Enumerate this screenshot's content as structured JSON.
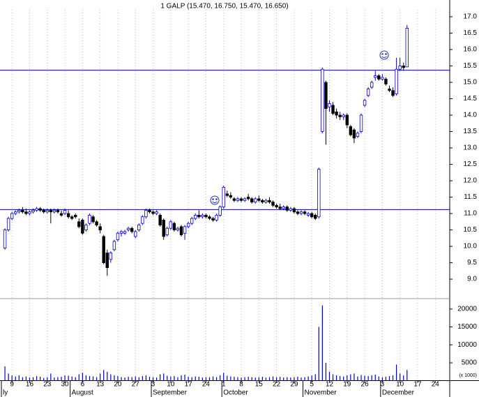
{
  "chart_data": {
    "type": "candlestick",
    "title": "1 GALP (15.470, 16.750, 15.470, 16.650)",
    "up_color": "#0000cc",
    "down_color": "#000000",
    "volume_color": "#0000cc",
    "line_color": "#0000aa",
    "open": [
      9.95,
      10.5,
      10.85,
      11.0,
      11.05,
      11.1,
      11.05,
      11.0,
      11.05,
      11.1,
      11.15,
      11.1,
      11.05,
      11.1,
      11.05,
      11.1,
      11.0,
      11.0,
      11.0,
      10.9,
      10.95,
      10.75,
      10.8,
      10.5,
      10.7,
      10.9,
      10.75,
      10.6,
      10.3,
      9.8,
      9.6,
      9.9,
      10.2,
      10.4,
      10.4,
      10.5,
      10.55,
      10.3,
      10.5,
      10.7,
      10.9,
      11.1,
      11.05,
      11.0,
      10.95,
      10.8,
      10.35,
      10.55,
      10.7,
      10.5,
      10.6,
      10.4,
      10.6,
      10.7,
      10.85,
      10.95,
      10.9,
      10.95,
      10.9,
      10.85,
      10.8,
      10.95,
      11.2,
      11.6,
      11.55,
      11.45,
      11.4,
      11.45,
      11.4,
      11.5,
      11.45,
      11.35,
      11.45,
      11.4,
      11.35,
      11.4,
      11.35,
      11.25,
      11.2,
      11.15,
      11.2,
      11.1,
      11.15,
      11.05,
      11.0,
      11.05,
      10.95,
      11.0,
      10.95,
      10.9,
      13.5,
      15.0,
      14.25,
      14.3,
      14.1,
      14.0,
      13.95,
      14.0,
      13.65,
      13.55,
      13.35,
      13.5,
      14.3,
      14.6,
      14.85,
      15.15,
      15.2,
      15.1,
      15.1,
      14.8,
      14.75,
      14.65,
      15.4,
      15.5,
      15.47
    ],
    "high": [
      10.55,
      10.9,
      11.05,
      11.1,
      11.15,
      11.2,
      11.15,
      11.1,
      11.15,
      11.2,
      11.2,
      11.15,
      11.15,
      11.15,
      11.15,
      11.15,
      11.1,
      11.15,
      11.1,
      10.95,
      11.0,
      10.85,
      10.85,
      10.7,
      11.0,
      10.95,
      10.8,
      10.7,
      10.35,
      9.9,
      9.85,
      10.2,
      10.45,
      10.5,
      10.5,
      10.6,
      10.6,
      10.5,
      10.7,
      10.95,
      11.15,
      11.15,
      11.1,
      11.1,
      11.0,
      10.85,
      10.6,
      10.8,
      10.75,
      10.6,
      10.65,
      10.65,
      10.75,
      10.9,
      11.0,
      11.1,
      11.0,
      11.0,
      10.95,
      10.9,
      11.0,
      11.25,
      11.85,
      11.7,
      11.65,
      11.5,
      11.5,
      11.5,
      11.5,
      11.6,
      11.5,
      11.5,
      11.55,
      11.45,
      11.45,
      11.5,
      11.4,
      11.3,
      11.3,
      11.25,
      11.25,
      11.2,
      11.2,
      11.1,
      11.1,
      11.1,
      11.05,
      11.05,
      11.0,
      12.4,
      15.45,
      15.05,
      14.45,
      14.4,
      14.2,
      14.1,
      14.05,
      14.05,
      13.7,
      13.6,
      13.5,
      14.05,
      14.5,
      14.85,
      15.05,
      15.35,
      15.25,
      15.25,
      15.15,
      14.9,
      14.85,
      15.75,
      15.75,
      15.6,
      16.75
    ],
    "low": [
      9.9,
      10.45,
      10.8,
      10.95,
      11.0,
      11.0,
      10.95,
      10.95,
      11.0,
      11.05,
      11.05,
      11.0,
      11.0,
      10.7,
      11.0,
      11.0,
      10.9,
      10.95,
      10.85,
      10.8,
      10.85,
      10.55,
      10.35,
      10.45,
      10.65,
      10.7,
      10.6,
      10.4,
      9.45,
      9.1,
      9.5,
      9.85,
      10.15,
      10.3,
      10.35,
      10.45,
      10.4,
      10.25,
      10.45,
      10.65,
      10.85,
      11.0,
      10.95,
      10.95,
      10.6,
      10.2,
      10.3,
      10.5,
      10.45,
      10.45,
      10.3,
      10.2,
      10.55,
      10.65,
      10.8,
      10.85,
      10.85,
      10.85,
      10.8,
      10.75,
      10.75,
      10.9,
      11.15,
      11.5,
      11.45,
      11.35,
      11.35,
      11.35,
      11.35,
      11.4,
      11.3,
      11.3,
      11.35,
      11.3,
      11.3,
      11.3,
      11.2,
      11.15,
      11.1,
      11.1,
      11.05,
      11.05,
      11.0,
      10.95,
      10.95,
      10.95,
      10.9,
      10.85,
      10.8,
      10.85,
      13.45,
      13.1,
      14.1,
      14.0,
      13.9,
      13.85,
      13.85,
      13.6,
      13.35,
      13.15,
      13.3,
      13.45,
      14.25,
      14.55,
      14.8,
      15.05,
      15.05,
      15.05,
      14.9,
      14.7,
      14.55,
      14.6,
      15.35,
      15.35,
      15.47
    ],
    "close": [
      10.5,
      10.85,
      11.0,
      11.05,
      11.1,
      11.05,
      11.0,
      11.05,
      11.1,
      11.15,
      11.1,
      11.05,
      11.1,
      11.05,
      11.1,
      11.05,
      10.95,
      11.1,
      10.9,
      10.85,
      10.9,
      10.6,
      10.4,
      10.65,
      10.95,
      10.75,
      10.65,
      10.5,
      9.5,
      9.35,
      9.8,
      10.15,
      10.4,
      10.45,
      10.45,
      10.55,
      10.45,
      10.45,
      10.65,
      10.9,
      11.1,
      11.05,
      11.0,
      11.05,
      10.65,
      10.3,
      10.55,
      10.75,
      10.5,
      10.55,
      10.35,
      10.6,
      10.7,
      10.85,
      10.95,
      10.9,
      10.95,
      10.9,
      10.85,
      10.8,
      10.95,
      11.2,
      11.8,
      11.55,
      11.5,
      11.4,
      11.45,
      11.4,
      11.45,
      11.45,
      11.35,
      11.45,
      11.4,
      11.35,
      11.4,
      11.35,
      11.25,
      11.2,
      11.15,
      11.2,
      11.1,
      11.15,
      11.05,
      11.0,
      11.05,
      11.0,
      11.0,
      10.9,
      10.85,
      12.35,
      15.4,
      14.2,
      14.35,
      14.05,
      14.0,
      13.95,
      14.0,
      13.7,
      13.4,
      13.3,
      13.45,
      14.0,
      14.45,
      14.8,
      15.0,
      15.2,
      15.1,
      15.15,
      14.95,
      14.75,
      14.6,
      15.4,
      15.5,
      15.45,
      16.65
    ],
    "volume": [
      4000,
      2000,
      1500,
      1200,
      1500,
      1000,
      1200,
      900,
      1000,
      1300,
      1100,
      800,
      1000,
      2000,
      900,
      1000,
      1100,
      1500,
      1400,
      1200,
      1000,
      1800,
      2200,
      1500,
      1300,
      1200,
      1000,
      2000,
      3000,
      2500,
      1800,
      1500,
      1300,
      1000,
      900,
      1100,
      1000,
      1200,
      1000,
      1300,
      1500,
      1100,
      1000,
      900,
      1800,
      2000,
      1400,
      1200,
      1300,
      1000,
      1500,
      1700,
      1100,
      1000,
      1200,
      1100,
      900,
      1000,
      1000,
      1200,
      1000,
      1500,
      2200,
      1400,
      1200,
      1100,
      1000,
      900,
      1000,
      1100,
      1000,
      900,
      1000,
      1100,
      900,
      1000,
      1200,
      1000,
      1100,
      900,
      1000,
      900,
      1000,
      1100,
      900,
      1000,
      1200,
      1500,
      1800,
      15000,
      21000,
      5000,
      2500,
      1800,
      1500,
      1300,
      1200,
      1500,
      1800,
      2000,
      1200,
      1600,
      1400,
      1300,
      1500,
      1700,
      1200,
      1000,
      1100,
      1300,
      1500,
      4500,
      2000,
      1500,
      3000
    ],
    "xlim": [
      -1,
      126
    ],
    "xticks": [
      {
        "value": 2,
        "label": "9"
      },
      {
        "value": 7,
        "label": "16"
      },
      {
        "value": 12,
        "label": "23"
      },
      {
        "value": 17,
        "label": "30"
      },
      {
        "value": 22,
        "label": "6"
      },
      {
        "value": 27,
        "label": "13"
      },
      {
        "value": 32,
        "label": "20"
      },
      {
        "value": 37,
        "label": "27"
      },
      {
        "value": 42,
        "label": "3"
      },
      {
        "value": 47,
        "label": "10"
      },
      {
        "value": 52,
        "label": "17"
      },
      {
        "value": 57,
        "label": "24"
      },
      {
        "value": 62,
        "label": "1"
      },
      {
        "value": 67,
        "label": "8"
      },
      {
        "value": 72,
        "label": "15"
      },
      {
        "value": 77,
        "label": "22"
      },
      {
        "value": 82,
        "label": "29"
      },
      {
        "value": 87,
        "label": "5"
      },
      {
        "value": 92,
        "label": "12"
      },
      {
        "value": 97,
        "label": "19"
      },
      {
        "value": 102,
        "label": "26"
      },
      {
        "value": 107,
        "label": "3"
      },
      {
        "value": 112,
        "label": "10"
      },
      {
        "value": 117,
        "label": "17"
      },
      {
        "value": 122,
        "label": "24"
      }
    ],
    "month_labels": [
      {
        "value": -1,
        "label": "ly"
      },
      {
        "value": 18.5,
        "label": "August"
      },
      {
        "value": 41.5,
        "label": "September"
      },
      {
        "value": 61.5,
        "label": "October"
      },
      {
        "value": 84.5,
        "label": "November"
      },
      {
        "value": 106.5,
        "label": "December"
      }
    ],
    "ylim": [
      8.47,
      17.51
    ],
    "yticks": [
      {
        "value": 9,
        "label": "9.0"
      },
      {
        "value": 9.5,
        "label": "9.5"
      },
      {
        "value": 10,
        "label": "10.0"
      },
      {
        "value": 10.5,
        "label": "10.5"
      },
      {
        "value": 11,
        "label": "11.0"
      },
      {
        "value": 11.5,
        "label": "11.5"
      },
      {
        "value": 12,
        "label": "12.0"
      },
      {
        "value": 12.5,
        "label": "12.5"
      },
      {
        "value": 13,
        "label": "13.0"
      },
      {
        "value": 13.5,
        "label": "13.5"
      },
      {
        "value": 14,
        "label": "14.0"
      },
      {
        "value": 14.5,
        "label": "14.5"
      },
      {
        "value": 15,
        "label": "15.0"
      },
      {
        "value": 15.5,
        "label": "15.5"
      },
      {
        "value": 16,
        "label": "16.0"
      },
      {
        "value": 16.5,
        "label": "16.5"
      },
      {
        "value": 17,
        "label": "17.0"
      }
    ],
    "volume_lim": [
      0,
      22500
    ],
    "volume_ticks": [
      5000,
      10000,
      15000,
      20000
    ],
    "volume_unit": "(x 1000)",
    "horizontal_lines": [
      15.37,
      11.12
    ]
  }
}
